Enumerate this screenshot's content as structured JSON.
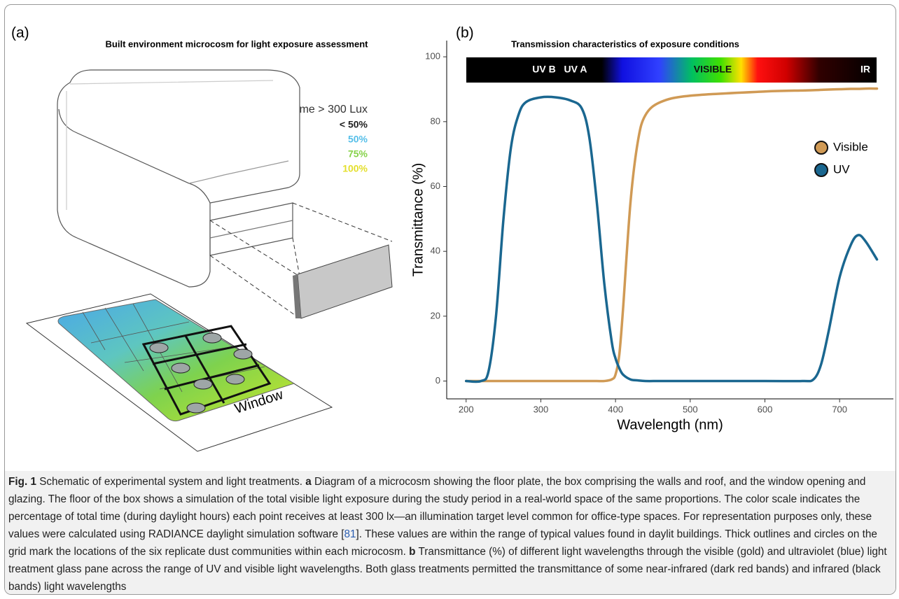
{
  "panel_a": {
    "label": "(a)",
    "title": "Built environment microcosm for light exposure assessment",
    "legend_title": "% Time > 300 Lux",
    "legend": [
      "< 50%",
      "50%",
      "75%",
      "100%"
    ],
    "window_label": "Window"
  },
  "chart_data": {
    "type": "line",
    "panel_label": "(b)",
    "title": "Transmission characteristics of exposure conditions",
    "spectrum_labels": [
      "UV B",
      "UV A",
      "VISIBLE",
      "IR"
    ],
    "x_label": "Wavelength (nm)",
    "y_label": "Transmittance (%)",
    "x": [
      200,
      220,
      230,
      240,
      250,
      260,
      270,
      280,
      300,
      320,
      340,
      355,
      365,
      375,
      385,
      395,
      400,
      405,
      410,
      420,
      430,
      440,
      460,
      500,
      600,
      650,
      665,
      675,
      685,
      700,
      715,
      725,
      735,
      750
    ],
    "series": [
      {
        "name": "Visible",
        "color": "#d09a55",
        "values": [
          0,
          0,
          0,
          0,
          0,
          0,
          0,
          0,
          0,
          0,
          0,
          0,
          0,
          0,
          0,
          0.5,
          2,
          8,
          22,
          55,
          74,
          82,
          86,
          88,
          89.3,
          89.6,
          89.7,
          89.8,
          89.9,
          90,
          90.1,
          90.1,
          90.2,
          90.2
        ]
      },
      {
        "name": "UV",
        "color": "#1a6790",
        "values": [
          0,
          0,
          3,
          20,
          50,
          72,
          82,
          86,
          87.5,
          87.5,
          86.5,
          84,
          75,
          55,
          30,
          12,
          7,
          4,
          2,
          0.5,
          0.2,
          0,
          0,
          0,
          0,
          0,
          0.5,
          5,
          15,
          32,
          42,
          45,
          43,
          37.5
        ]
      }
    ],
    "xlim": [
      174,
      772
    ],
    "ylim": [
      -5.5,
      105
    ],
    "xticks": [
      200,
      300,
      400,
      500,
      600,
      700
    ],
    "yticks": [
      0,
      20,
      40,
      60,
      80,
      100
    ],
    "legend_position": "right"
  },
  "caption": {
    "figure_label": "Fig. 1",
    "lead": " Schematic of experimental system and light treatments. ",
    "a_label": "a",
    "a_text_1": " Diagram of a microcosm showing the floor plate, the box comprising the walls and roof, and the window opening and glazing. The floor of the box shows a simulation of the total visible light exposure during the study period in a real-world space of the same proportions. The color scale indicates the percentage of total time (during daylight hours) each point receives at least 300 lx—an illumination target level common for office-type spaces. For representation purposes only, these values were calculated using RADIANCE daylight simulation software [",
    "a_ref": "81",
    "a_text_2": "]. These values are within the range of typical values found in daylit buildings. Thick outlines and circles on the grid mark the locations of the six replicate dust communities within each microcosm. ",
    "b_label": "b",
    "b_text": " Transmittance (%) of different light wavelengths through the visible (gold) and ultraviolet (blue) light treatment glass pane across the range of UV and visible light wavelengths. Both glass treatments permitted the transmittance of some near-infrared (dark red bands) and infrared (black bands) light wavelengths"
  }
}
